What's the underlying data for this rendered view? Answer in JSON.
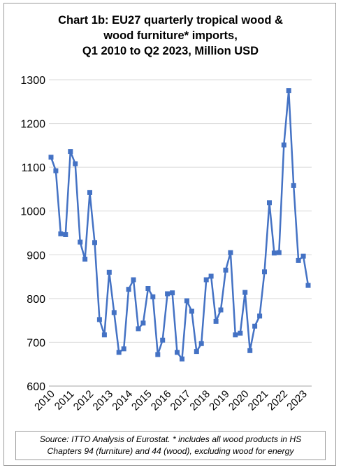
{
  "chart_data": {
    "type": "line",
    "title_lines": [
      "Chart 1b: EU27 quarterly tropical wood &",
      "wood furniture* imports,",
      "Q1 2010 to Q2 2023, Million USD"
    ],
    "xlabel": "",
    "ylabel": "",
    "ylim": [
      600,
      1300
    ],
    "yticks": [
      "600",
      "700",
      "800",
      "900",
      "1000",
      "1100",
      "1200",
      "1300"
    ],
    "xticks": [
      "2010",
      "2011",
      "2012",
      "2013",
      "2014",
      "2015",
      "2016",
      "2017",
      "2018",
      "2019",
      "2020",
      "2021",
      "2022",
      "2023"
    ],
    "grid": "horizontal",
    "legend": "none",
    "series": [
      {
        "color": "#4472c4",
        "values": [
          1123,
          1092,
          948,
          946,
          1136,
          1108,
          929,
          890,
          1042,
          928,
          752,
          717,
          860,
          768,
          677,
          685,
          821,
          843,
          731,
          744,
          823,
          804,
          672,
          705,
          811,
          813,
          677,
          662,
          795,
          771,
          679,
          697,
          843,
          851,
          748,
          774,
          865,
          905,
          717,
          721,
          814,
          681,
          737,
          760,
          861,
          1019,
          904,
          905,
          1151,
          1275,
          1058,
          887,
          897,
          830
        ]
      }
    ]
  },
  "source_lines": [
    "Source: ITTO Analysis of Eurostat. * includes all wood products in HS",
    "Chapters 94 (furniture) and 44 (wood), excluding wood for energy"
  ]
}
